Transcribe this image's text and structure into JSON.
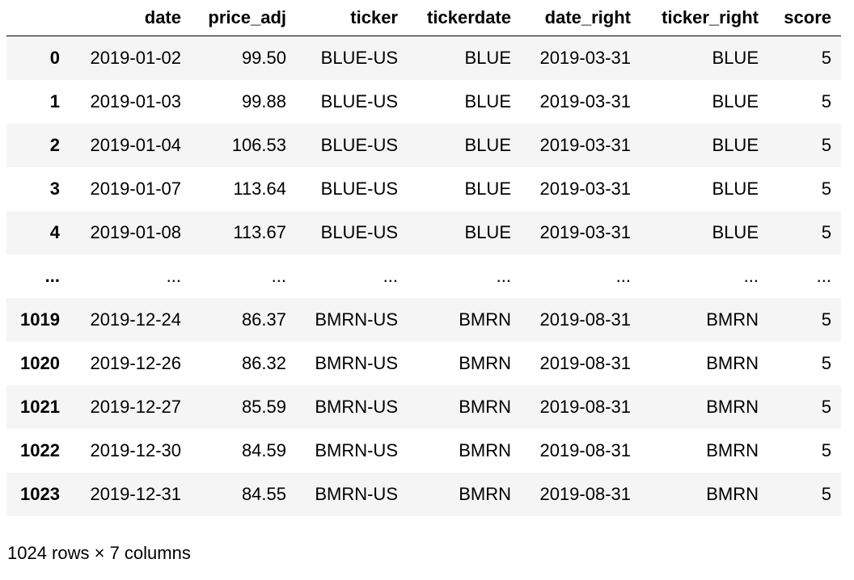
{
  "table": {
    "columns": [
      "",
      "date",
      "price_adj",
      "ticker",
      "tickerdate",
      "date_right",
      "ticker_right",
      "score"
    ],
    "rows": [
      [
        "0",
        "2019-01-02",
        "99.50",
        "BLUE-US",
        "BLUE",
        "2019-03-31",
        "BLUE",
        "5"
      ],
      [
        "1",
        "2019-01-03",
        "99.88",
        "BLUE-US",
        "BLUE",
        "2019-03-31",
        "BLUE",
        "5"
      ],
      [
        "2",
        "2019-01-04",
        "106.53",
        "BLUE-US",
        "BLUE",
        "2019-03-31",
        "BLUE",
        "5"
      ],
      [
        "3",
        "2019-01-07",
        "113.64",
        "BLUE-US",
        "BLUE",
        "2019-03-31",
        "BLUE",
        "5"
      ],
      [
        "4",
        "2019-01-08",
        "113.67",
        "BLUE-US",
        "BLUE",
        "2019-03-31",
        "BLUE",
        "5"
      ],
      [
        "...",
        "...",
        "...",
        "...",
        "...",
        "...",
        "...",
        "..."
      ],
      [
        "1019",
        "2019-12-24",
        "86.37",
        "BMRN-US",
        "BMRN",
        "2019-08-31",
        "BMRN",
        "5"
      ],
      [
        "1020",
        "2019-12-26",
        "86.32",
        "BMRN-US",
        "BMRN",
        "2019-08-31",
        "BMRN",
        "5"
      ],
      [
        "1021",
        "2019-12-27",
        "85.59",
        "BMRN-US",
        "BMRN",
        "2019-08-31",
        "BMRN",
        "5"
      ],
      [
        "1022",
        "2019-12-30",
        "84.59",
        "BMRN-US",
        "BMRN",
        "2019-08-31",
        "BMRN",
        "5"
      ],
      [
        "1023",
        "2019-12-31",
        "84.55",
        "BMRN-US",
        "BMRN",
        "2019-08-31",
        "BMRN",
        "5"
      ]
    ]
  },
  "footer": {
    "shape": "1024 rows × 7 columns"
  }
}
